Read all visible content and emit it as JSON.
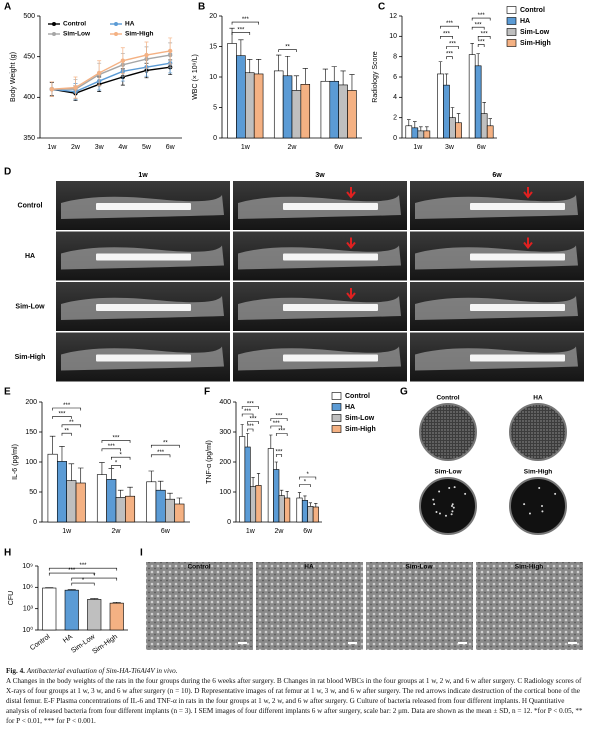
{
  "chart_data": [
    {
      "type": "line",
      "label": "A",
      "categories": [
        "1w",
        "2w",
        "3w",
        "4w",
        "5w",
        "6w"
      ],
      "y_label": "Body Weight (g)",
      "ylim": [
        350,
        500
      ],
      "yticks": [
        350,
        400,
        450,
        500
      ],
      "legend": "upper-left",
      "series": [
        {
          "name": "Control",
          "color": "#000000",
          "values": [
            410,
            405,
            416,
            425,
            433,
            437
          ],
          "errors": [
            8,
            9,
            9,
            10,
            9,
            9
          ]
        },
        {
          "name": "HA",
          "color": "#5b9bd5",
          "values": [
            410,
            407,
            420,
            432,
            437,
            442
          ],
          "errors": [
            9,
            10,
            11,
            12,
            11,
            12
          ]
        },
        {
          "name": "Sim-Low",
          "color": "#a6a6a6",
          "values": [
            410,
            410,
            428,
            440,
            447,
            452
          ],
          "errors": [
            9,
            12,
            14,
            14,
            15,
            15
          ]
        },
        {
          "name": "Sim-High",
          "color": "#f4b183",
          "values": [
            410,
            412,
            430,
            445,
            452,
            457
          ],
          "errors": [
            9,
            13,
            15,
            16,
            16,
            16
          ]
        }
      ]
    },
    {
      "type": "bar",
      "label": "B",
      "categories": [
        "1w",
        "2w",
        "6w"
      ],
      "y_label": "WBC (× 10⁹/L)",
      "ylim": [
        0,
        20
      ],
      "yticks": [
        0,
        5,
        10,
        15,
        20
      ],
      "legend": "none",
      "series": [
        {
          "color": "#ffffff",
          "values": [
            15.5,
            11,
            9.3
          ],
          "errors": [
            2.5,
            2.6,
            2
          ]
        },
        {
          "color": "#5b9bd5",
          "values": [
            13.5,
            10.2,
            9.3
          ],
          "errors": [
            2.6,
            3.2,
            2.4
          ]
        },
        {
          "color": "#bfbfbf",
          "values": [
            10.7,
            7.8,
            8.7
          ],
          "errors": [
            2.2,
            2.4,
            2.3
          ]
        },
        {
          "color": "#f4b183",
          "values": [
            10.5,
            8.8,
            7.8
          ],
          "errors": [
            2.4,
            2.6,
            2.6
          ]
        }
      ],
      "brackets": [
        {
          "group": 0,
          "from": 0,
          "to": 3,
          "y": 19,
          "label": "***"
        },
        {
          "group": 0,
          "from": 0,
          "to": 2,
          "y": 17.3,
          "label": "***"
        },
        {
          "group": 1,
          "from": 0,
          "to": 2,
          "y": 14.5,
          "label": "**"
        }
      ]
    },
    {
      "type": "bar",
      "label": "C",
      "categories": [
        "1w",
        "3w",
        "6w"
      ],
      "y_label": "Radiology Score",
      "ylim": [
        0,
        12
      ],
      "yticks": [
        0,
        2,
        4,
        6,
        8,
        10,
        12
      ],
      "legend": "right",
      "series": [
        {
          "name": "Control",
          "color": "#ffffff",
          "values": [
            1.2,
            6.3,
            8.2
          ],
          "errors": [
            0.6,
            1.2,
            1.1
          ]
        },
        {
          "name": "HA",
          "color": "#5b9bd5",
          "values": [
            1,
            5.2,
            7.1
          ],
          "errors": [
            0.6,
            1.1,
            1.2
          ]
        },
        {
          "name": "Sim-Low",
          "color": "#bfbfbf",
          "values": [
            0.7,
            2,
            2.4
          ],
          "errors": [
            0.4,
            1,
            1.1
          ]
        },
        {
          "name": "Sim-High",
          "color": "#f4b183",
          "values": [
            0.7,
            1.5,
            1.2
          ],
          "errors": [
            0.4,
            0.9,
            0.7
          ]
        }
      ],
      "brackets": [
        {
          "group": 1,
          "from": 0,
          "to": 3,
          "y": 11,
          "label": "***"
        },
        {
          "group": 1,
          "from": 0,
          "to": 2,
          "y": 10,
          "label": "***"
        },
        {
          "group": 1,
          "from": 1,
          "to": 3,
          "y": 9,
          "label": "***"
        },
        {
          "group": 1,
          "from": 1,
          "to": 2,
          "y": 8,
          "label": "***"
        },
        {
          "group": 2,
          "from": 0,
          "to": 3,
          "y": 11.8,
          "label": "***"
        },
        {
          "group": 2,
          "from": 0,
          "to": 2,
          "y": 10.9,
          "label": "***"
        },
        {
          "group": 2,
          "from": 1,
          "to": 3,
          "y": 10,
          "label": "***"
        },
        {
          "group": 2,
          "from": 1,
          "to": 2,
          "y": 9.2,
          "label": "***"
        }
      ]
    },
    {
      "type": "bar",
      "label": "E",
      "categories": [
        "1w",
        "2w",
        "6w"
      ],
      "y_label": "IL-6 (pg/ml)",
      "ylim": [
        0,
        200
      ],
      "yticks": [
        0,
        50,
        100,
        150,
        200
      ],
      "legend": "none",
      "series": [
        {
          "color": "#ffffff",
          "values": [
            113,
            79,
            67
          ],
          "errors": [
            30,
            20,
            18
          ]
        },
        {
          "color": "#5b9bd5",
          "values": [
            101,
            71,
            53
          ],
          "errors": [
            25,
            18,
            15
          ]
        },
        {
          "color": "#bfbfbf",
          "values": [
            69,
            41,
            38
          ],
          "errors": [
            28,
            12,
            10
          ]
        },
        {
          "color": "#f4b183",
          "values": [
            65,
            43,
            30
          ],
          "errors": [
            25,
            15,
            10
          ]
        }
      ],
      "brackets": [
        {
          "group": 0,
          "from": 0,
          "to": 3,
          "y": 190,
          "label": "***"
        },
        {
          "group": 0,
          "from": 0,
          "to": 2,
          "y": 176,
          "label": "***"
        },
        {
          "group": 0,
          "from": 1,
          "to": 3,
          "y": 162,
          "label": "**"
        },
        {
          "group": 0,
          "from": 1,
          "to": 2,
          "y": 148,
          "label": "**"
        },
        {
          "group": 1,
          "from": 0,
          "to": 3,
          "y": 136,
          "label": "***"
        },
        {
          "group": 1,
          "from": 0,
          "to": 2,
          "y": 122,
          "label": "***"
        },
        {
          "group": 1,
          "from": 1,
          "to": 3,
          "y": 108,
          "label": "*"
        },
        {
          "group": 1,
          "from": 1,
          "to": 2,
          "y": 94,
          "label": "*"
        },
        {
          "group": 2,
          "from": 0,
          "to": 3,
          "y": 128,
          "label": "**"
        },
        {
          "group": 2,
          "from": 0,
          "to": 2,
          "y": 112,
          "label": "***"
        }
      ]
    },
    {
      "type": "bar",
      "label": "F",
      "categories": [
        "1w",
        "2w",
        "6w"
      ],
      "y_label": "TNF-α (pg/ml)",
      "ylim": [
        0,
        400
      ],
      "yticks": [
        0,
        100,
        200,
        300,
        400
      ],
      "legend": "right",
      "series": [
        {
          "name": "Control",
          "color": "#ffffff",
          "values": [
            285,
            245,
            80
          ],
          "errors": [
            40,
            45,
            18
          ]
        },
        {
          "name": "HA",
          "color": "#5b9bd5",
          "values": [
            250,
            175,
            72
          ],
          "errors": [
            45,
            25,
            15
          ]
        },
        {
          "name": "Sim-Low",
          "color": "#bfbfbf",
          "values": [
            118,
            88,
            52
          ],
          "errors": [
            30,
            18,
            12
          ]
        },
        {
          "name": "Sim-High",
          "color": "#f4b183",
          "values": [
            122,
            80,
            50
          ],
          "errors": [
            40,
            22,
            12
          ]
        }
      ],
      "brackets": [
        {
          "group": 0,
          "from": 0,
          "to": 3,
          "y": 385,
          "label": "***"
        },
        {
          "group": 0,
          "from": 0,
          "to": 2,
          "y": 360,
          "label": "***"
        },
        {
          "group": 0,
          "from": 1,
          "to": 3,
          "y": 335,
          "label": "***"
        },
        {
          "group": 0,
          "from": 1,
          "to": 2,
          "y": 310,
          "label": "***"
        },
        {
          "group": 1,
          "from": 0,
          "to": 3,
          "y": 345,
          "label": "***"
        },
        {
          "group": 1,
          "from": 0,
          "to": 2,
          "y": 320,
          "label": "***"
        },
        {
          "group": 1,
          "from": 1,
          "to": 3,
          "y": 295,
          "label": "***"
        },
        {
          "group": 1,
          "from": 1,
          "to": 2,
          "y": 225,
          "label": "***"
        },
        {
          "group": 2,
          "from": 0,
          "to": 3,
          "y": 150,
          "label": "*"
        },
        {
          "group": 2,
          "from": 0,
          "to": 2,
          "y": 125,
          "label": "*"
        }
      ]
    },
    {
      "type": "bar",
      "label": "H",
      "categories": [
        "Control",
        "HA",
        "Sim-Low",
        "Sim-High"
      ],
      "y_label": "CFU",
      "log_scale": true,
      "ylim": [
        1,
        1000000000
      ],
      "yticks": [
        {
          "value": 1,
          "label": "10⁰"
        },
        {
          "value": 1000,
          "label": "10³"
        },
        {
          "value": 1000000,
          "label": "10⁶"
        },
        {
          "value": 1000000000,
          "label": "10⁹"
        }
      ],
      "legend": "none",
      "colors": [
        "#ffffff",
        "#5b9bd5",
        "#bfbfbf",
        "#f4b183"
      ],
      "values": [
        800000,
        400000,
        20000,
        6000
      ],
      "errors": [
        100000,
        80000,
        6000,
        2000
      ],
      "brackets": [
        {
          "from": 0,
          "to": 3,
          "y": 500000000,
          "label": "***"
        },
        {
          "from": 0,
          "to": 2,
          "y": 100000000,
          "label": "***"
        },
        {
          "from": 1,
          "to": 3,
          "y": 20000000,
          "label": "*"
        },
        {
          "from": 1,
          "to": 2,
          "y": 4000000,
          "label": "*"
        }
      ]
    }
  ],
  "images": {
    "D": {
      "label": "D",
      "columns": [
        "1w",
        "3w",
        "6w"
      ],
      "rows": [
        "Control",
        "HA",
        "Sim-Low",
        "Sim-High"
      ]
    },
    "G": {
      "label": "G",
      "items": [
        "Control",
        "HA",
        "Sim-Low",
        "Sim-High"
      ]
    },
    "I": {
      "label": "I",
      "items": [
        "Control",
        "HA",
        "Sim-Low",
        "Sim-High"
      ]
    }
  },
  "caption": {
    "title": "Fig. 4.",
    "subtitle": "Antibacterial evaluation of Sim-HA-Ti6Al4V in vivo.",
    "text": "A Changes in the body weights of the rats in the four groups during the 6 weeks after surgery. B Changes in rat blood WBCs in the four groups at 1 w, 2 w, and 6 w after surgery. C Radiology scores of X-rays of four groups at 1 w, 3 w, and 6 w after surgery (n = 10). D Representative images of rat femur at 1 w, 3 w, and 6 w after surgery. The red arrows indicate destruction of the cortical bone of the distal femur. E-F Plasma concentrations of IL-6 and TNF-α in rats in the four groups at 1 w, 2 w, and 6 w after surgery. G Culture of bacteria released from four different implants. H Quantitative analysis of released bacteria from four different implants (n = 3). I SEM images of four different implants 6 w after surgery, scale bar: 2 μm. Data are shown as the mean ± SD, n = 12. *for P < 0.05, ** for P < 0.01, *** for P < 0.001."
  }
}
